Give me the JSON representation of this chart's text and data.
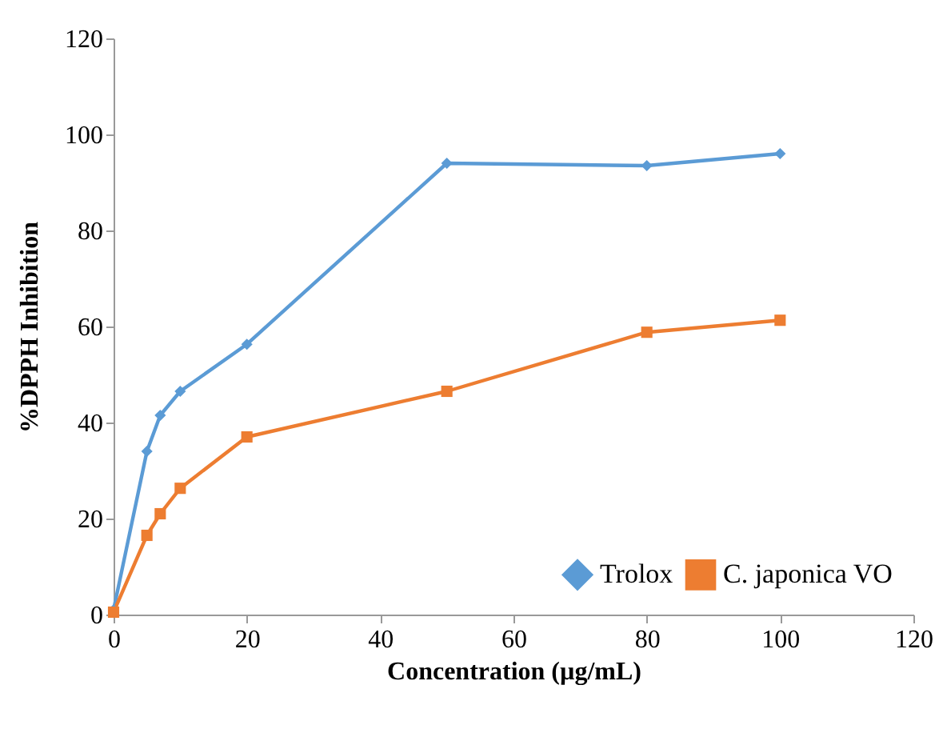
{
  "chart_data": {
    "type": "line",
    "xlabel": "Concentration (µg/mL)",
    "ylabel": "%DPPH Inhibition",
    "x": [
      0,
      5,
      7,
      10,
      20,
      50,
      80,
      100
    ],
    "series": [
      {
        "name": "Trolox",
        "color": "#5b9bd5",
        "marker": "diamond",
        "values": [
          1,
          34,
          41.5,
          46.5,
          56.3,
          94,
          93.5,
          96
        ]
      },
      {
        "name": "C. japonica VO",
        "color": "#ed7d31",
        "marker": "square",
        "values": [
          0.5,
          16.5,
          21,
          26.3,
          37,
          46.5,
          58.8,
          61.3
        ]
      }
    ],
    "xlim": [
      0,
      120
    ],
    "xticks": [
      0,
      20,
      40,
      60,
      80,
      100,
      120
    ],
    "ylim": [
      0,
      120
    ],
    "yticks": [
      0,
      20,
      40,
      60,
      80,
      100,
      120
    ],
    "grid": false,
    "legend": "bottom right",
    "line_style": "solid"
  }
}
